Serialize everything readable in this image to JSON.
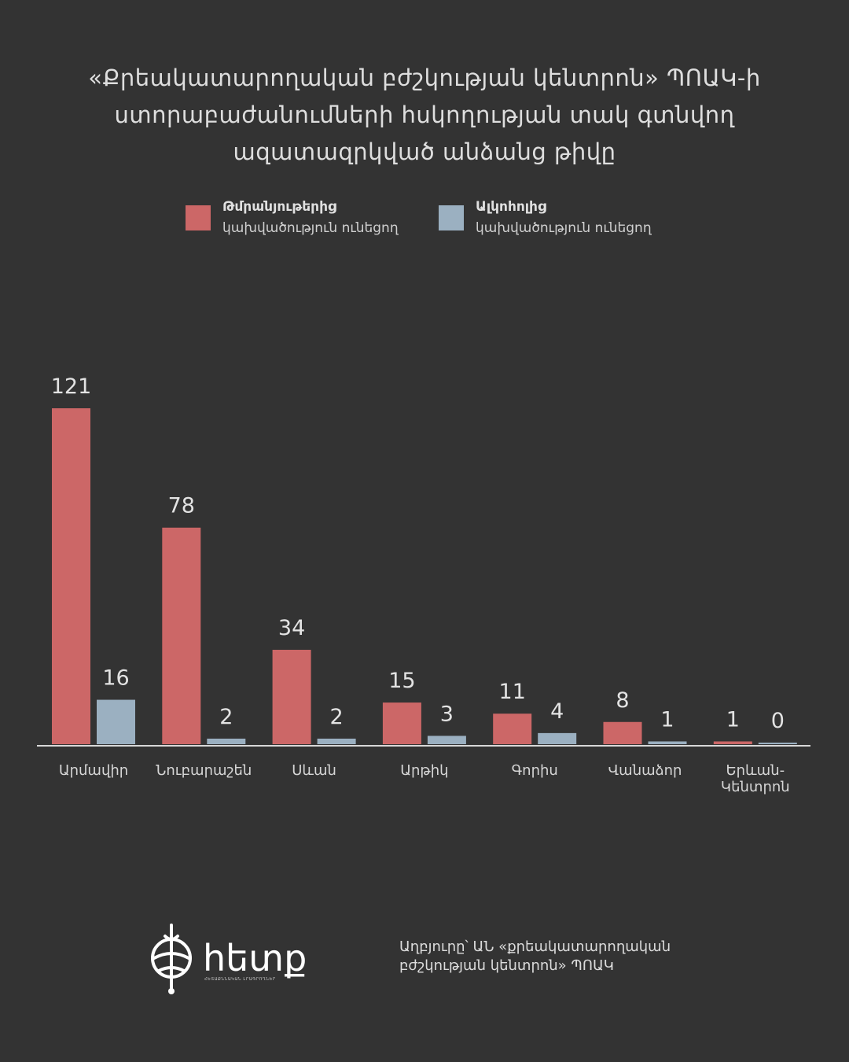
{
  "title": {
    "line1": "«Քրեակատարողական բժշկության կենտրոն» ՊՈԱԿ-ի",
    "line2": "ստորաբաժանումների հսկողության տակ գտնվող",
    "line3": "ազատազրկված անձանց թիվը"
  },
  "legend": [
    {
      "name": "Թմրանյութերից",
      "desc": "կախվածություն ունեցող",
      "color": "#cc6767"
    },
    {
      "name": "Ալկոհոլից",
      "desc": "կախվածություն ունեցող",
      "color": "#9bb0c1"
    }
  ],
  "chart_data": {
    "type": "bar",
    "title": "«Քրեակատարողական բժշկության կենտրոն» ՊՈԱԿ-ի ստորաբաժանումների հսկողության տակ գտնվող ազատազրկված անձանց թիվը",
    "categories": [
      "Արմավիր",
      "Նուբարաշեն",
      "Սևան",
      "Արթիկ",
      "Գորիս",
      "Վանաձոր",
      "Երևան-\nԿենտրոն"
    ],
    "series": [
      {
        "name": "Թմրանյութերից կախվածություն ունեցող",
        "values": [
          121,
          78,
          34,
          15,
          11,
          8,
          1
        ],
        "color": "#cc6767"
      },
      {
        "name": "Ալկոհոլից կախվածություն ունեցող",
        "values": [
          16,
          2,
          2,
          3,
          4,
          1,
          0
        ],
        "color": "#9bb0c1"
      }
    ],
    "xlabel": "",
    "ylabel": "",
    "ylim": [
      0,
      121
    ],
    "grid": false,
    "legend": "top-center"
  },
  "logo": {
    "text": "հետք",
    "tagline": "ՀԵՏԱՔՆՆԱԿԱՆ ԼՐԱԳՐՈՂՆԵՐ"
  },
  "source": {
    "line1": "Աղբյուրը՝ ԱՆ «քրեակատարողական",
    "line2": "բժշկության կենտրոն» ՊՈԱԿ"
  }
}
